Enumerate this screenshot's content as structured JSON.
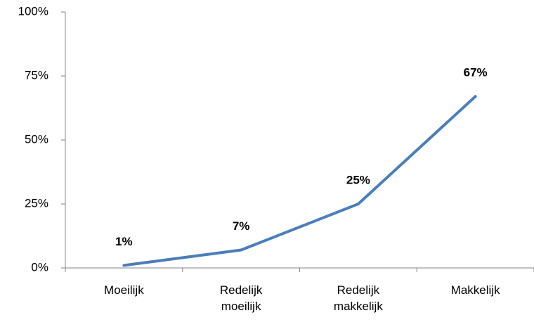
{
  "chart_data": {
    "type": "line",
    "categories": [
      "Moeilijk",
      "Redelijk moeilijk",
      "Redelijk makkelijk",
      "Makkelijk"
    ],
    "series": [
      {
        "color": "#4a7ebb",
        "values": [
          1,
          7,
          25,
          67
        ],
        "value_labels": [
          "1%",
          "7%",
          "25%",
          "67%"
        ]
      }
    ],
    "ylim": [
      0,
      100
    ],
    "yticks": [
      {
        "value": 0,
        "label": "0%"
      },
      {
        "value": 25,
        "label": "25%"
      },
      {
        "value": 50,
        "label": "50%"
      },
      {
        "value": 75,
        "label": "75%"
      },
      {
        "value": 100,
        "label": "100%"
      }
    ],
    "grid": false
  }
}
